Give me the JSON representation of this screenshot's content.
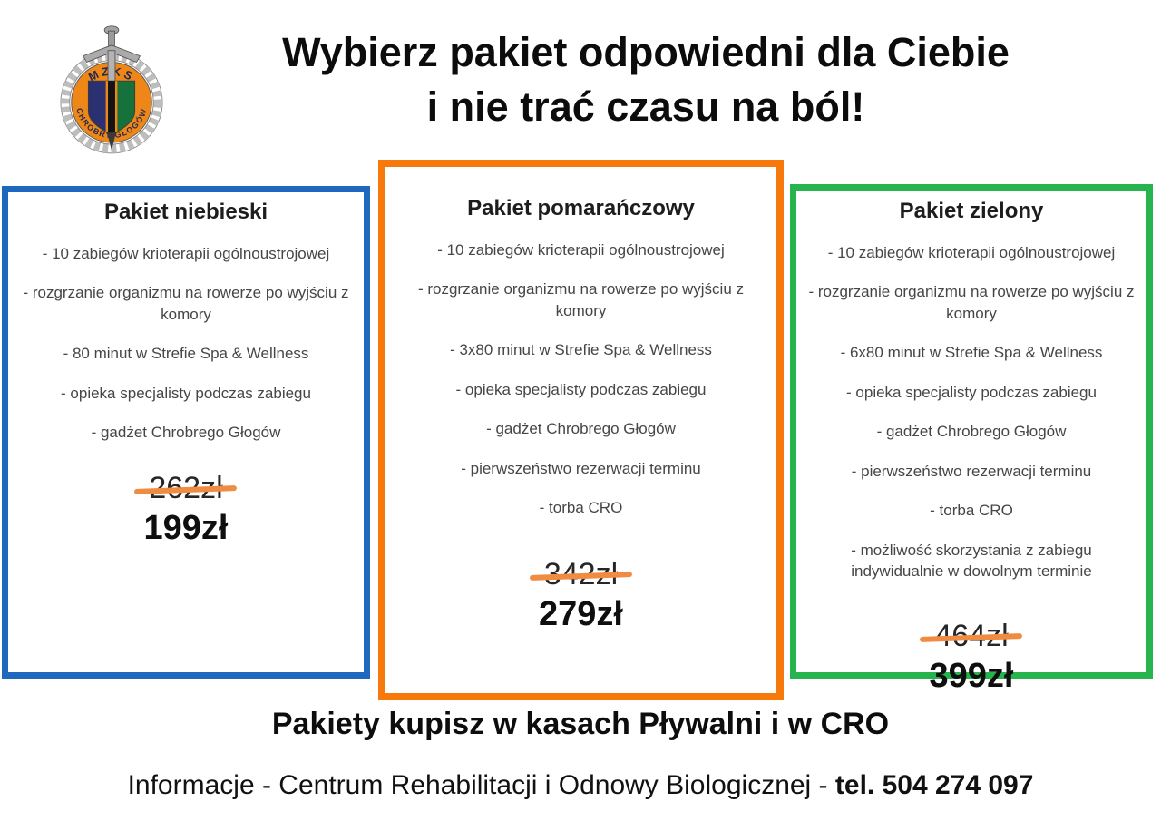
{
  "logo": {
    "ring_text_top": "MZKS",
    "ring_text_bottom": "CHROBRY GŁOGÓW"
  },
  "header": {
    "title_line1": "Wybierz pakiet odpowiedni dla Ciebie",
    "title_line2": "i nie trać czasu na ból!"
  },
  "packages": [
    {
      "name": "Pakiet niebieski",
      "accent": "#1e68bd",
      "items": [
        "- 10 zabiegów krioterapii ogólnoustrojowej",
        "- rozgrzanie organizmu na rowerze po wyjściu z komory",
        "- 80 minut w Strefie Spa & Wellness",
        "- opieka specjalisty podczas zabiegu",
        "- gadżet Chrobrego Głogów"
      ],
      "old_price": "262zł",
      "price": "199zł"
    },
    {
      "name": "Pakiet pomarańczowy",
      "accent": "#f8790b",
      "items": [
        "- 10 zabiegów krioterapii ogólnoustrojowej",
        "- rozgrzanie organizmu na rowerze po wyjściu z komory",
        "- 3x80 minut w Strefie Spa & Wellness",
        "- opieka specjalisty podczas zabiegu",
        "- gadżet Chrobrego Głogów",
        "- pierwszeństwo rezerwacji terminu",
        "- torba CRO"
      ],
      "old_price": "342zł",
      "price": "279zł"
    },
    {
      "name": "Pakiet zielony",
      "accent": "#27b44e",
      "items": [
        "- 10 zabiegów krioterapii ogólnoustrojowej",
        "- rozgrzanie organizmu na rowerze po wyjściu z komory",
        "- 6x80 minut w Strefie Spa & Wellness",
        "- opieka specjalisty podczas zabiegu",
        "- gadżet Chrobrego Głogów",
        "- pierwszeństwo rezerwacji terminu",
        "- torba CRO",
        "- możliwość skorzystania z zabiegu indywidualnie w dowolnym terminie"
      ],
      "old_price": "464zł",
      "price": "399zł"
    }
  ],
  "footer": {
    "purchase_info": "Pakiety kupisz w kasach Pływalni i w CRO",
    "contact_info_regular": "Informacje - Centrum Rehabilitacji i Odnowy Biologicznej - ",
    "contact_info_bold": "tel. 504 274 097"
  },
  "colors": {
    "strike": "#f08c42",
    "blue_accent": "#1e68bd",
    "orange_accent": "#f8790b",
    "green_accent": "#27b44e"
  }
}
